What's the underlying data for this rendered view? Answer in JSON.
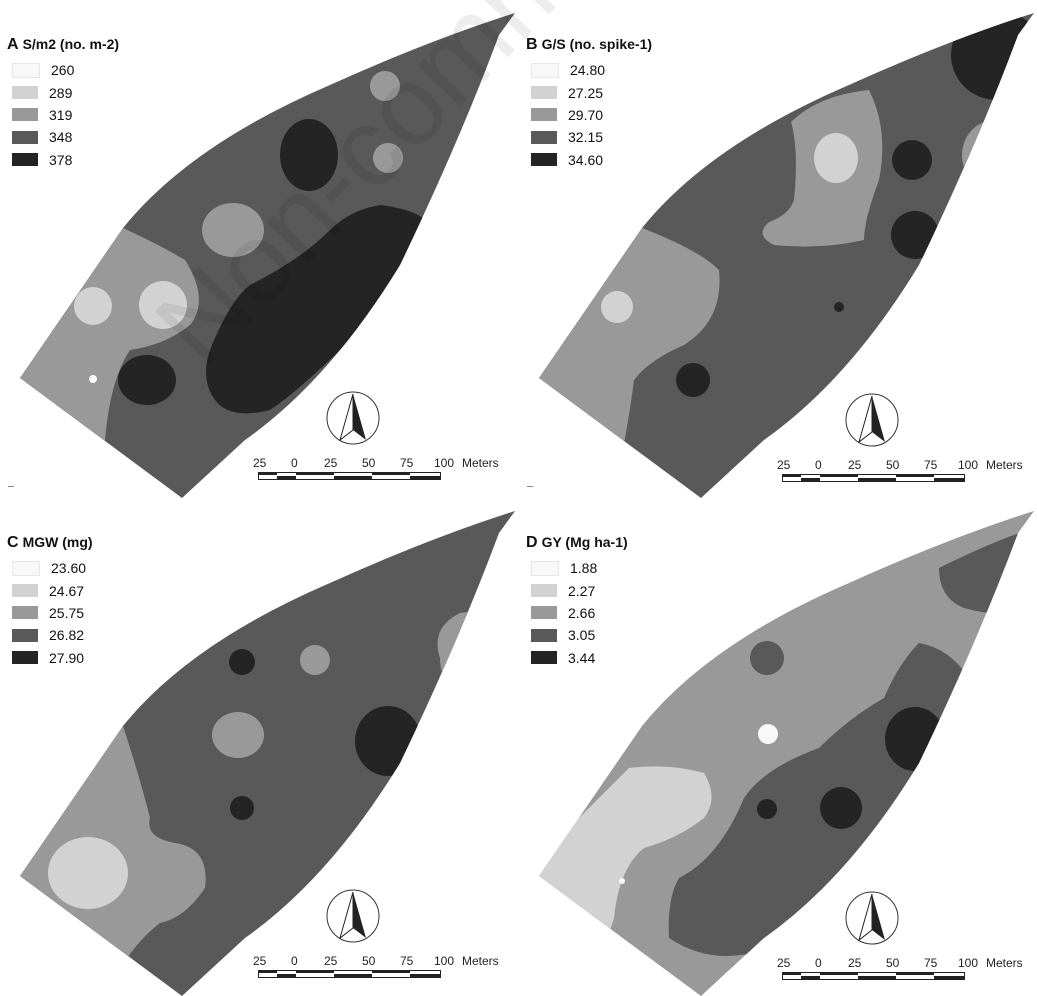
{
  "watermark": "Non-commercial use",
  "scale": {
    "labels": [
      "25",
      "0",
      "25",
      "50",
      "75",
      "100"
    ],
    "unit": "Meters"
  },
  "colors": {
    "class1": "#f8f8f8",
    "class2": "#d2d2d2",
    "class3": "#999999",
    "class4": "#595959",
    "class5": "#242424"
  },
  "panels": [
    {
      "letter": "A",
      "variable": "S/m2 (no. m-2)",
      "legend": [
        "260",
        "289",
        "319",
        "348",
        "378"
      ]
    },
    {
      "letter": "B",
      "variable": "G/S (no. spike-1)",
      "legend": [
        "24.80",
        "27.25",
        "29.70",
        "32.15",
        "34.60"
      ]
    },
    {
      "letter": "C",
      "variable": "MGW (mg)",
      "legend": [
        "23.60",
        "24.67",
        "25.75",
        "26.82",
        "27.90"
      ]
    },
    {
      "letter": "D",
      "variable": "GY (Mg ha-1)",
      "legend": [
        "1.88",
        "2.27",
        "2.66",
        "3.05",
        "3.44"
      ]
    }
  ]
}
